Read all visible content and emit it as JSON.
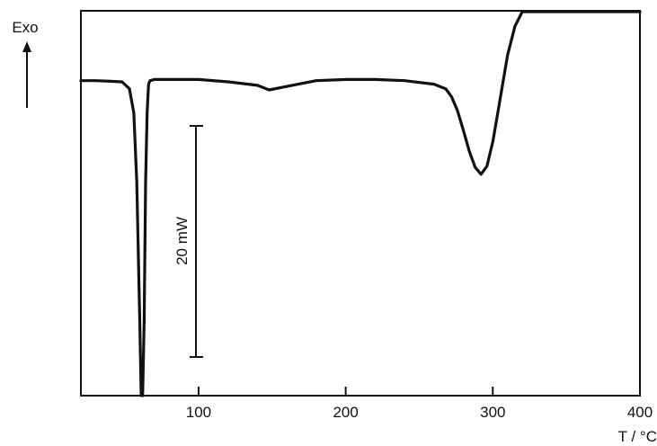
{
  "chart_data": {
    "type": "line",
    "title": "",
    "xlabel": "T / °C",
    "ylabel": "Exo",
    "xlim": [
      20,
      400
    ],
    "xticks": [
      100,
      200,
      300,
      400
    ],
    "xtick_labels": [
      "100",
      "200",
      "300",
      "400"
    ],
    "grid": false,
    "y_units": "relative heat flow, mW (scale bar = 20 mW)",
    "scale_bar": {
      "label": "20 mW",
      "value_mW": 20
    },
    "series": [
      {
        "x": [
          20,
          30,
          40,
          48,
          53,
          56,
          58,
          60,
          61,
          62,
          63,
          64,
          65,
          66,
          67,
          70,
          80,
          100,
          120,
          140,
          148,
          160,
          180,
          200,
          220,
          240,
          260,
          268,
          272,
          276,
          280,
          284,
          288,
          292,
          296,
          300,
          304,
          310,
          315,
          320,
          325,
          330,
          335,
          340,
          345,
          350,
          355,
          360,
          370,
          380,
          390,
          400
        ],
        "y": [
          0.8,
          0.8,
          0.75,
          0.7,
          0.1,
          -2.0,
          -8.0,
          -20.0,
          -29.0,
          -33.5,
          -20.0,
          -8.0,
          -2.0,
          0.5,
          0.8,
          0.9,
          0.9,
          0.9,
          0.7,
          0.4,
          0.0,
          0.3,
          0.8,
          0.9,
          0.9,
          0.8,
          0.5,
          0.1,
          -0.6,
          -1.8,
          -3.5,
          -5.3,
          -6.7,
          -7.3,
          -6.6,
          -4.5,
          -1.5,
          3.0,
          5.5,
          7.5,
          8.9,
          10.0,
          10.8,
          11.3,
          11.0,
          11.5,
          11.8,
          12.0,
          12.2,
          12.6,
          13.2,
          13.5
        ]
      }
    ]
  }
}
